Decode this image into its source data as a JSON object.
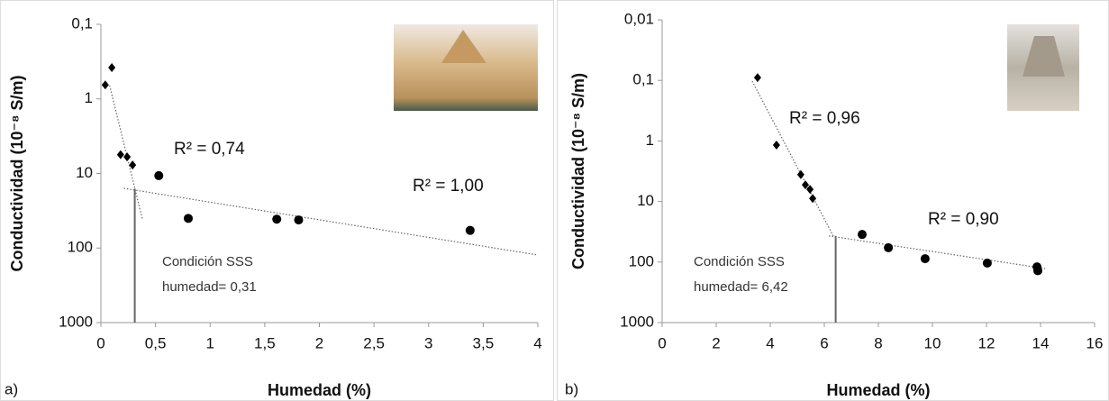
{
  "chart_data": [
    {
      "type": "scatter",
      "panel": "a)",
      "xlabel": "Humedad (%)",
      "ylabel": "Conductividad (10⁻⁸ S/m)",
      "log_y": true,
      "y_inverted": true,
      "xlim": [
        0,
        4
      ],
      "ylim": [
        0.1,
        1000
      ],
      "xticks": [
        0,
        {
          "value": 0.5,
          "label": "0,5"
        },
        1,
        {
          "value": 1.5,
          "label": "1,5"
        },
        2,
        {
          "value": 2.5,
          "label": "2,5"
        },
        3,
        {
          "value": 3.5,
          "label": "3,5"
        },
        4
      ],
      "yticks": [
        {
          "value": 0.1,
          "label": "0,1"
        },
        1,
        10,
        100,
        1000
      ],
      "series": [
        {
          "marker": "diamond",
          "color": "#000000",
          "x": [
            0.04,
            0.1,
            0.18,
            0.24,
            0.29
          ],
          "values": [
            0.65,
            0.38,
            5.6,
            6.0,
            7.7
          ]
        },
        {
          "marker": "circle",
          "color": "#000000",
          "x": [
            0.53,
            0.8,
            1.61,
            1.81,
            3.38
          ],
          "values": [
            10.7,
            40,
            41,
            42,
            58
          ]
        }
      ],
      "trendlines": [
        {
          "x": [
            0.08,
            0.38
          ],
          "values": [
            0.66,
            41
          ]
        },
        {
          "x": [
            0.21,
            4
          ],
          "values": [
            15.8,
            124
          ]
        }
      ],
      "sss_line": {
        "x": 0.31,
        "y": 16
      },
      "annotations": [
        {
          "text": "R² = 0,74"
        },
        {
          "text": "R² = 1,00"
        },
        {
          "text": "Condición SSS"
        },
        {
          "text": "humedad= 0,31"
        }
      ]
    },
    {
      "type": "scatter",
      "panel": "b)",
      "xlabel": "Humedad (%)",
      "ylabel": "Conductividad (10⁻⁸ S/m)",
      "log_y": true,
      "y_inverted": true,
      "xlim": [
        0,
        16
      ],
      "ylim": [
        0.01,
        1000
      ],
      "xticks": [
        0,
        2,
        4,
        6,
        8,
        10,
        12,
        14,
        16
      ],
      "yticks": [
        {
          "value": 0.01,
          "label": "0,01"
        },
        {
          "value": 0.1,
          "label": "0,1"
        },
        1,
        10,
        100,
        1000
      ],
      "series": [
        {
          "marker": "diamond",
          "color": "#000000",
          "x": [
            3.53,
            4.23,
            5.13,
            5.3,
            5.47,
            5.57
          ],
          "values": [
            0.09,
            1.17,
            3.6,
            5.3,
            6.3,
            8.9
          ]
        },
        {
          "marker": "circle",
          "color": "#000000",
          "x": [
            7.4,
            8.37,
            9.73,
            12.03,
            13.87,
            13.9
          ],
          "values": [
            35,
            58,
            88,
            104,
            120,
            139
          ]
        }
      ],
      "trendlines": [
        {
          "x": [
            3.33,
            6.33
          ],
          "values": [
            0.103,
            37
          ]
        },
        {
          "x": [
            6.17,
            14.17
          ],
          "values": [
            37,
            128
          ]
        }
      ],
      "sss_line": {
        "x": 6.42,
        "y": 37
      },
      "annotations": [
        {
          "text": "R² = 0,96"
        },
        {
          "text": "R² = 0,90"
        },
        {
          "text": "Condición SSS"
        },
        {
          "text": "humedad= 6,42"
        }
      ]
    }
  ]
}
